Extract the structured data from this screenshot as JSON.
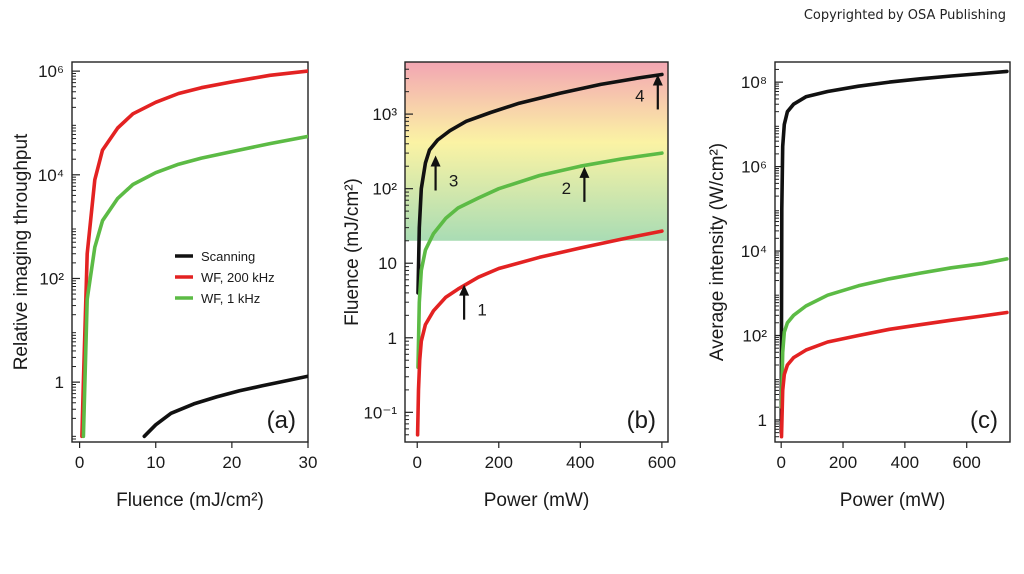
{
  "copyright": "Copyrighted by OSA Publishing",
  "chart_data": [
    {
      "type": "line",
      "panel_label": "(a)",
      "xlabel": "Fluence (mJ/cm²)",
      "ylabel": "Relative imaging throughput",
      "x_scale": "linear",
      "y_scale": "log",
      "xlim": [
        -1,
        30
      ],
      "ylim": [
        0.07,
        1500000
      ],
      "x_ticks": [
        {
          "v": 0,
          "label": "0"
        },
        {
          "v": 10,
          "label": "10"
        },
        {
          "v": 20,
          "label": "20"
        },
        {
          "v": 30,
          "label": "30"
        }
      ],
      "y_ticks": [
        {
          "v": 1,
          "label": "1"
        },
        {
          "v": 100,
          "label": "10²"
        },
        {
          "v": 10000,
          "label": "10⁴"
        },
        {
          "v": 1000000,
          "label": "10⁶"
        }
      ],
      "legend": {
        "position": "center-right"
      },
      "series": [
        {
          "name": "Scanning",
          "color": "#111111",
          "x": [
            8.5,
            10,
            12,
            15,
            18,
            21,
            24,
            27,
            30
          ],
          "y": [
            0.09,
            0.15,
            0.25,
            0.38,
            0.52,
            0.68,
            0.85,
            1.05,
            1.3
          ]
        },
        {
          "name": "WF, 200 kHz",
          "color": "#e32222",
          "x": [
            0.3,
            0.5,
            1,
            2,
            3,
            5,
            7,
            10,
            13,
            16,
            20,
            25,
            30
          ],
          "y": [
            0.09,
            1,
            300,
            8000,
            30000,
            80000,
            150000,
            250000,
            370000,
            480000,
            620000,
            830000,
            1000000
          ]
        },
        {
          "name": "WF, 1 kHz",
          "color": "#5cbb45",
          "x": [
            0.5,
            1,
            2,
            3,
            5,
            7,
            10,
            13,
            16,
            20,
            25,
            30
          ],
          "y": [
            0.09,
            40,
            400,
            1300,
            3500,
            6500,
            11000,
            16000,
            21000,
            28000,
            40000,
            55000
          ]
        }
      ]
    },
    {
      "type": "line",
      "panel_label": "(b)",
      "xlabel": "Power (mW)",
      "ylabel": "Fluence (mJ/cm²)",
      "x_scale": "linear",
      "y_scale": "log",
      "xlim": [
        -30,
        615
      ],
      "ylim": [
        0.04,
        5000
      ],
      "x_ticks": [
        {
          "v": 0,
          "label": "0"
        },
        {
          "v": 200,
          "label": "200"
        },
        {
          "v": 400,
          "label": "400"
        },
        {
          "v": 600,
          "label": "600"
        }
      ],
      "y_ticks": [
        {
          "v": 0.1,
          "label": "10⁻¹"
        },
        {
          "v": 1,
          "label": "1"
        },
        {
          "v": 10,
          "label": "10"
        },
        {
          "v": 100,
          "label": "10²"
        },
        {
          "v": 1000,
          "label": "10³"
        }
      ],
      "background_band": {
        "y_range": [
          20,
          5000
        ],
        "colors": [
          "#f3a6b3",
          "#fbf3a4",
          "#a9dcb4"
        ]
      },
      "series": [
        {
          "color": "#111111",
          "x": [
            2,
            5,
            10,
            20,
            30,
            50,
            80,
            120,
            180,
            250,
            350,
            450,
            550,
            600
          ],
          "y": [
            4,
            30,
            100,
            220,
            330,
            450,
            600,
            800,
            1050,
            1400,
            1900,
            2500,
            3100,
            3400
          ]
        },
        {
          "color": "#5cbb45",
          "x": [
            2,
            5,
            10,
            20,
            40,
            70,
            100,
            150,
            200,
            300,
            400,
            500,
            600
          ],
          "y": [
            0.4,
            3,
            8,
            15,
            25,
            40,
            55,
            75,
            100,
            150,
            200,
            250,
            300
          ]
        },
        {
          "color": "#e32222",
          "x": [
            1,
            3,
            6,
            10,
            20,
            40,
            70,
            100,
            150,
            200,
            300,
            400,
            500,
            600
          ],
          "y": [
            0.05,
            0.2,
            0.5,
            0.9,
            1.5,
            2.3,
            3.5,
            4.5,
            6.5,
            8.5,
            12,
            16,
            21,
            27
          ]
        }
      ],
      "annotations": [
        {
          "text": "1",
          "x": 115,
          "y": 5
        },
        {
          "text": "2",
          "x": 410,
          "y": 190
        },
        {
          "text": "3",
          "x": 45,
          "y": 270
        },
        {
          "text": "4",
          "x": 590,
          "y": 3300
        }
      ]
    },
    {
      "type": "line",
      "panel_label": "(c)",
      "xlabel": "Power (mW)",
      "ylabel": "Average intensity (W/cm²)",
      "x_scale": "linear",
      "y_scale": "log",
      "xlim": [
        -20,
        740
      ],
      "ylim": [
        0.3,
        300000000
      ],
      "x_ticks": [
        {
          "v": 0,
          "label": "0"
        },
        {
          "v": 200,
          "label": "200"
        },
        {
          "v": 400,
          "label": "400"
        },
        {
          "v": 600,
          "label": "600"
        }
      ],
      "y_ticks": [
        {
          "v": 1,
          "label": "1"
        },
        {
          "v": 100,
          "label": "10²"
        },
        {
          "v": 10000,
          "label": "10⁴"
        },
        {
          "v": 1000000,
          "label": "10⁶"
        },
        {
          "v": 100000000,
          "label": "10⁸"
        }
      ],
      "series": [
        {
          "color": "#111111",
          "x": [
            0,
            2,
            5,
            10,
            20,
            40,
            80,
            150,
            250,
            350,
            450,
            550,
            650,
            730
          ],
          "y": [
            0.5,
            100000,
            3000000,
            10000000,
            20000000,
            30000000,
            45000000,
            60000000,
            80000000,
            100000000,
            120000000,
            140000000,
            160000000,
            180000000
          ]
        },
        {
          "color": "#5cbb45",
          "x": [
            1,
            5,
            10,
            20,
            40,
            80,
            150,
            250,
            350,
            450,
            550,
            650,
            730
          ],
          "y": [
            2,
            40,
            120,
            200,
            300,
            500,
            900,
            1500,
            2200,
            3000,
            4000,
            5000,
            6500
          ]
        },
        {
          "color": "#e32222",
          "x": [
            1,
            5,
            10,
            20,
            40,
            80,
            150,
            250,
            350,
            450,
            550,
            650,
            730
          ],
          "y": [
            0.4,
            5,
            12,
            20,
            30,
            45,
            70,
            100,
            140,
            180,
            230,
            290,
            350
          ]
        }
      ]
    }
  ]
}
